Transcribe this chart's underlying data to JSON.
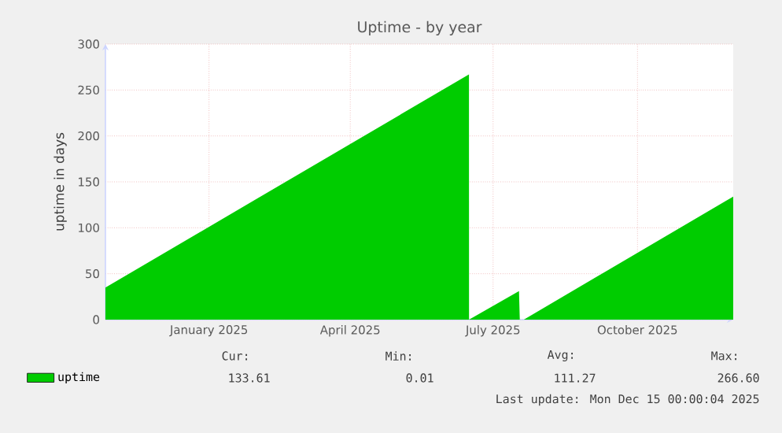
{
  "chart_data": {
    "type": "area",
    "title": "Uptime - by year",
    "ylabel": "uptime in days",
    "x": [
      "2024-11-10",
      "2025-06-29T15:00",
      "2025-06-29T16:00",
      "2025-07-31T12:00",
      "2025-08-01",
      "2025-08-03T14:00",
      "2025-12-15"
    ],
    "series": [
      {
        "name": "uptime",
        "color": "#00cc00",
        "values": [
          35,
          267,
          0,
          31,
          0,
          0,
          134
        ]
      }
    ],
    "xlim": [
      "2024-11-10",
      "2025-12-15"
    ],
    "xticks": [
      {
        "value": "2025-01-15",
        "label": "January 2025"
      },
      {
        "value": "2025-04-15",
        "label": "April 2025"
      },
      {
        "value": "2025-07-15",
        "label": "July 2025"
      },
      {
        "value": "2025-10-15",
        "label": "October 2025"
      }
    ],
    "ylim": [
      0,
      300
    ],
    "yticks": [
      0,
      50,
      100,
      150,
      200,
      250,
      300
    ],
    "grid": true,
    "legend": "bottom",
    "annotations": [
      "Cur:",
      "Min:",
      "Avg:",
      "Max:",
      "133.61",
      "0.01",
      "111.27",
      "266.60",
      "Last update: Mon Dec 15 00:00:04 2025"
    ]
  }
}
